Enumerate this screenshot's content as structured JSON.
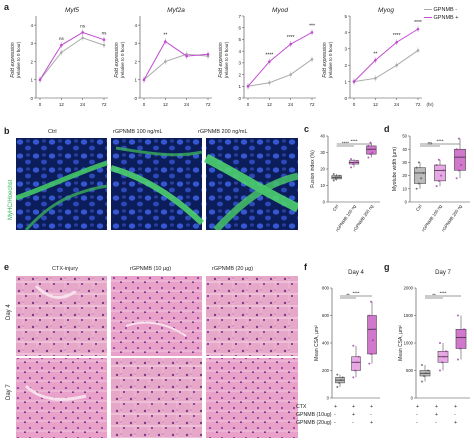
{
  "panels": {
    "a": "a",
    "b": "b",
    "c": "c",
    "d": "d",
    "e": "e",
    "f": "f",
    "g": "g"
  },
  "a": {
    "ylabel": "Fold expression",
    "ylabel2": "(relative to 0 hour)",
    "xunit": "(hr)",
    "legend": [
      {
        "label": "GPNMB -",
        "color": "#aaaaaa"
      },
      {
        "label": "GPNMB +",
        "color": "#c24bd1"
      }
    ]
  },
  "chart_data": [
    {
      "type": "line",
      "title": "Myf5",
      "categories": [
        "0",
        "12",
        "24",
        "72"
      ],
      "series": [
        {
          "name": "GPNMB -",
          "values": [
            1,
            2.5,
            3.3,
            2.9
          ]
        },
        {
          "name": "GPNMB +",
          "values": [
            1,
            2.9,
            3.6,
            3.2
          ]
        }
      ],
      "annotations": [
        "",
        "ns",
        "ns",
        "ns"
      ],
      "ylim": [
        0,
        4.5
      ],
      "yticks": [
        "0",
        "1",
        "2",
        "3",
        "4"
      ]
    },
    {
      "type": "line",
      "title": "Myf2a",
      "categories": [
        "0",
        "12",
        "24",
        "72"
      ],
      "series": [
        {
          "name": "GPNMB -",
          "values": [
            1,
            2.0,
            2.4,
            2.3
          ]
        },
        {
          "name": "GPNMB +",
          "values": [
            1,
            3.1,
            2.3,
            2.4
          ]
        }
      ],
      "annotations": [
        "",
        "**",
        "",
        ""
      ],
      "ylim": [
        0,
        4.5
      ],
      "yticks": [
        "0",
        "1",
        "2",
        "3",
        "4"
      ]
    },
    {
      "type": "line",
      "title": "Myod",
      "categories": [
        "0",
        "12",
        "24",
        "72"
      ],
      "series": [
        {
          "name": "GPNMB -",
          "values": [
            1,
            1.3,
            2.0,
            3.3
          ]
        },
        {
          "name": "GPNMB +",
          "values": [
            1,
            3.1,
            4.6,
            5.6
          ]
        }
      ],
      "annotations": [
        "",
        "****",
        "****",
        "***"
      ],
      "ylim": [
        0,
        7
      ],
      "yticks": [
        "0",
        "1",
        "2",
        "3",
        "4",
        "5",
        "6",
        "7"
      ]
    },
    {
      "type": "line",
      "title": "Myog",
      "categories": [
        "0",
        "12",
        "24",
        "72"
      ],
      "series": [
        {
          "name": "GPNMB -",
          "values": [
            1,
            1.2,
            2.0,
            2.9
          ]
        },
        {
          "name": "GPNMB +",
          "values": [
            1,
            2.3,
            3.4,
            4.2
          ]
        }
      ],
      "annotations": [
        "",
        "**",
        "****",
        "****"
      ],
      "ylim": [
        0,
        5
      ],
      "yticks": [
        "0",
        "1",
        "2",
        "3",
        "4",
        "5"
      ]
    },
    {
      "type": "box",
      "panel": "c",
      "ylabel": "Fusion index (%)",
      "categories": [
        "Ctrl",
        "rGPNMB 100 ng",
        "rGPNMB 200 ng"
      ],
      "series": [
        {
          "name": "Ctrl",
          "values": [
            13,
            14,
            15,
            16,
            17,
            15
          ]
        },
        {
          "name": "rGPNMB 100 ng",
          "values": [
            21,
            23,
            24,
            25,
            26
          ]
        },
        {
          "name": "rGPNMB 200 ng",
          "values": [
            27,
            29,
            30,
            32,
            34,
            36
          ]
        }
      ],
      "significance": [
        "****",
        "****"
      ],
      "ylim": [
        0,
        40
      ],
      "yticks": [
        "0",
        "10",
        "20",
        "30",
        "40"
      ]
    },
    {
      "type": "box",
      "panel": "d",
      "ylabel": "Myotube width (µm)",
      "categories": [
        "Ctrl",
        "rGPNMB 100 ng",
        "rGPNMB 200 ng"
      ],
      "series": [
        {
          "name": "Ctrl",
          "values": [
            10,
            14,
            18,
            22,
            26,
            30
          ]
        },
        {
          "name": "rGPNMB 100 ng",
          "values": [
            12,
            16,
            20,
            24,
            28,
            32
          ]
        },
        {
          "name": "rGPNMB 200 ng",
          "values": [
            18,
            24,
            28,
            34,
            40,
            48
          ]
        }
      ],
      "significance": [
        "ns",
        "****"
      ],
      "ylim": [
        0,
        50
      ],
      "yticks": [
        "0",
        "10",
        "20",
        "30",
        "40",
        "50"
      ]
    },
    {
      "type": "box",
      "panel": "f",
      "title": "Day 4",
      "ylabel": "Mean CSA, µm²",
      "categories": [
        "CTX",
        "GPNMB (10µg)",
        "GPNMB (20µg)"
      ],
      "series": [
        {
          "name": "CTX",
          "values": [
            80,
            110,
            130,
            150,
            170
          ]
        },
        {
          "name": "GPNMB (10µg)",
          "values": [
            150,
            200,
            260,
            300,
            380
          ]
        },
        {
          "name": "GPNMB (20µg)",
          "values": [
            250,
            320,
            420,
            500,
            600,
            700
          ]
        }
      ],
      "significance": [
        "**",
        "****"
      ],
      "ylim": [
        0,
        800
      ],
      "yticks": [
        "0",
        "200",
        "400",
        "600",
        "800"
      ]
    },
    {
      "type": "box",
      "panel": "g",
      "title": "Day 7",
      "ylabel": "Mean CSA, µm²",
      "categories": [
        "CTX",
        "GPNMB (10µg)",
        "GPNMB (20µg)"
      ],
      "series": [
        {
          "name": "CTX",
          "values": [
            300,
            400,
            450,
            500,
            600
          ]
        },
        {
          "name": "GPNMB (10µg)",
          "values": [
            500,
            650,
            750,
            850,
            1000
          ]
        },
        {
          "name": "GPNMB (20µg)",
          "values": [
            700,
            900,
            1100,
            1250,
            1500
          ]
        }
      ],
      "significance": [
        "**",
        "****"
      ],
      "ylim": [
        0,
        2000
      ],
      "yticks": [
        "0",
        "500",
        "1000",
        "1500",
        "2000"
      ]
    }
  ],
  "b": {
    "side_label": "MyHC/Hoechst",
    "cols": [
      "Ctrl",
      "rGPNMB 100 ng/mL",
      "rGPNMB 200 ng/mL"
    ]
  },
  "e": {
    "cols": [
      "CTX-injury",
      "rGPNMB (10 µg)",
      "rGPNMB (20 µg)"
    ],
    "rows": [
      "Day 4",
      "Day 7"
    ]
  },
  "fg": {
    "row_labels": [
      "CTX",
      "GPNMB (10ug)",
      "GPNMB (20ug)"
    ],
    "signs": [
      [
        "+",
        "+",
        "+"
      ],
      [
        "-",
        "+",
        "-"
      ],
      [
        "-",
        "-",
        "+"
      ]
    ]
  },
  "colors": {
    "neg": "#aaaaaa",
    "pos": "#c24bd1",
    "box_ctrl": "#bbbbbb",
    "box_mid": "#e7a9e3",
    "box_hi": "#cf78cc",
    "green": "#4cc46a",
    "blue": "#2f4fb8",
    "he_pink": "#e6a4c6",
    "he_purple": "#9c5da3"
  }
}
